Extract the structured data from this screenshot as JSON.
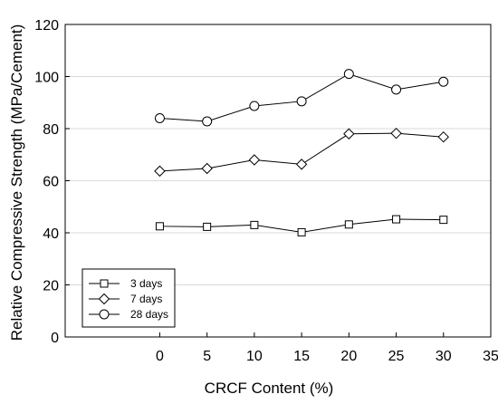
{
  "chart_data": {
    "type": "line",
    "xlabel": "CRCF Content (%)",
    "ylabel": "Relative Compressive Strength (MPa/Cement)",
    "xlim": [
      -10,
      35
    ],
    "ylim": [
      0,
      120
    ],
    "x_ticks": [
      0,
      5,
      10,
      15,
      20,
      25,
      30,
      35
    ],
    "y_ticks": [
      0,
      20,
      40,
      60,
      80,
      100,
      120
    ],
    "grid": "horizontal",
    "legend_position": "bottom-left",
    "x": [
      0,
      5,
      10,
      15,
      20,
      25,
      30
    ],
    "series": [
      {
        "name": "3 days",
        "marker": "square",
        "values": [
          42.5,
          42.3,
          43.0,
          40.2,
          43.2,
          45.2,
          45.0
        ]
      },
      {
        "name": "7 days",
        "marker": "diamond",
        "values": [
          63.7,
          64.7,
          68.0,
          66.3,
          78.0,
          78.2,
          76.8
        ]
      },
      {
        "name": "28 days",
        "marker": "circle",
        "values": [
          84.0,
          82.8,
          88.7,
          90.5,
          101.0,
          95.0,
          98.0
        ]
      }
    ]
  },
  "colors": {
    "line": "#000000",
    "grid": "#d9d9d9",
    "marker_fill": "#ffffff"
  }
}
